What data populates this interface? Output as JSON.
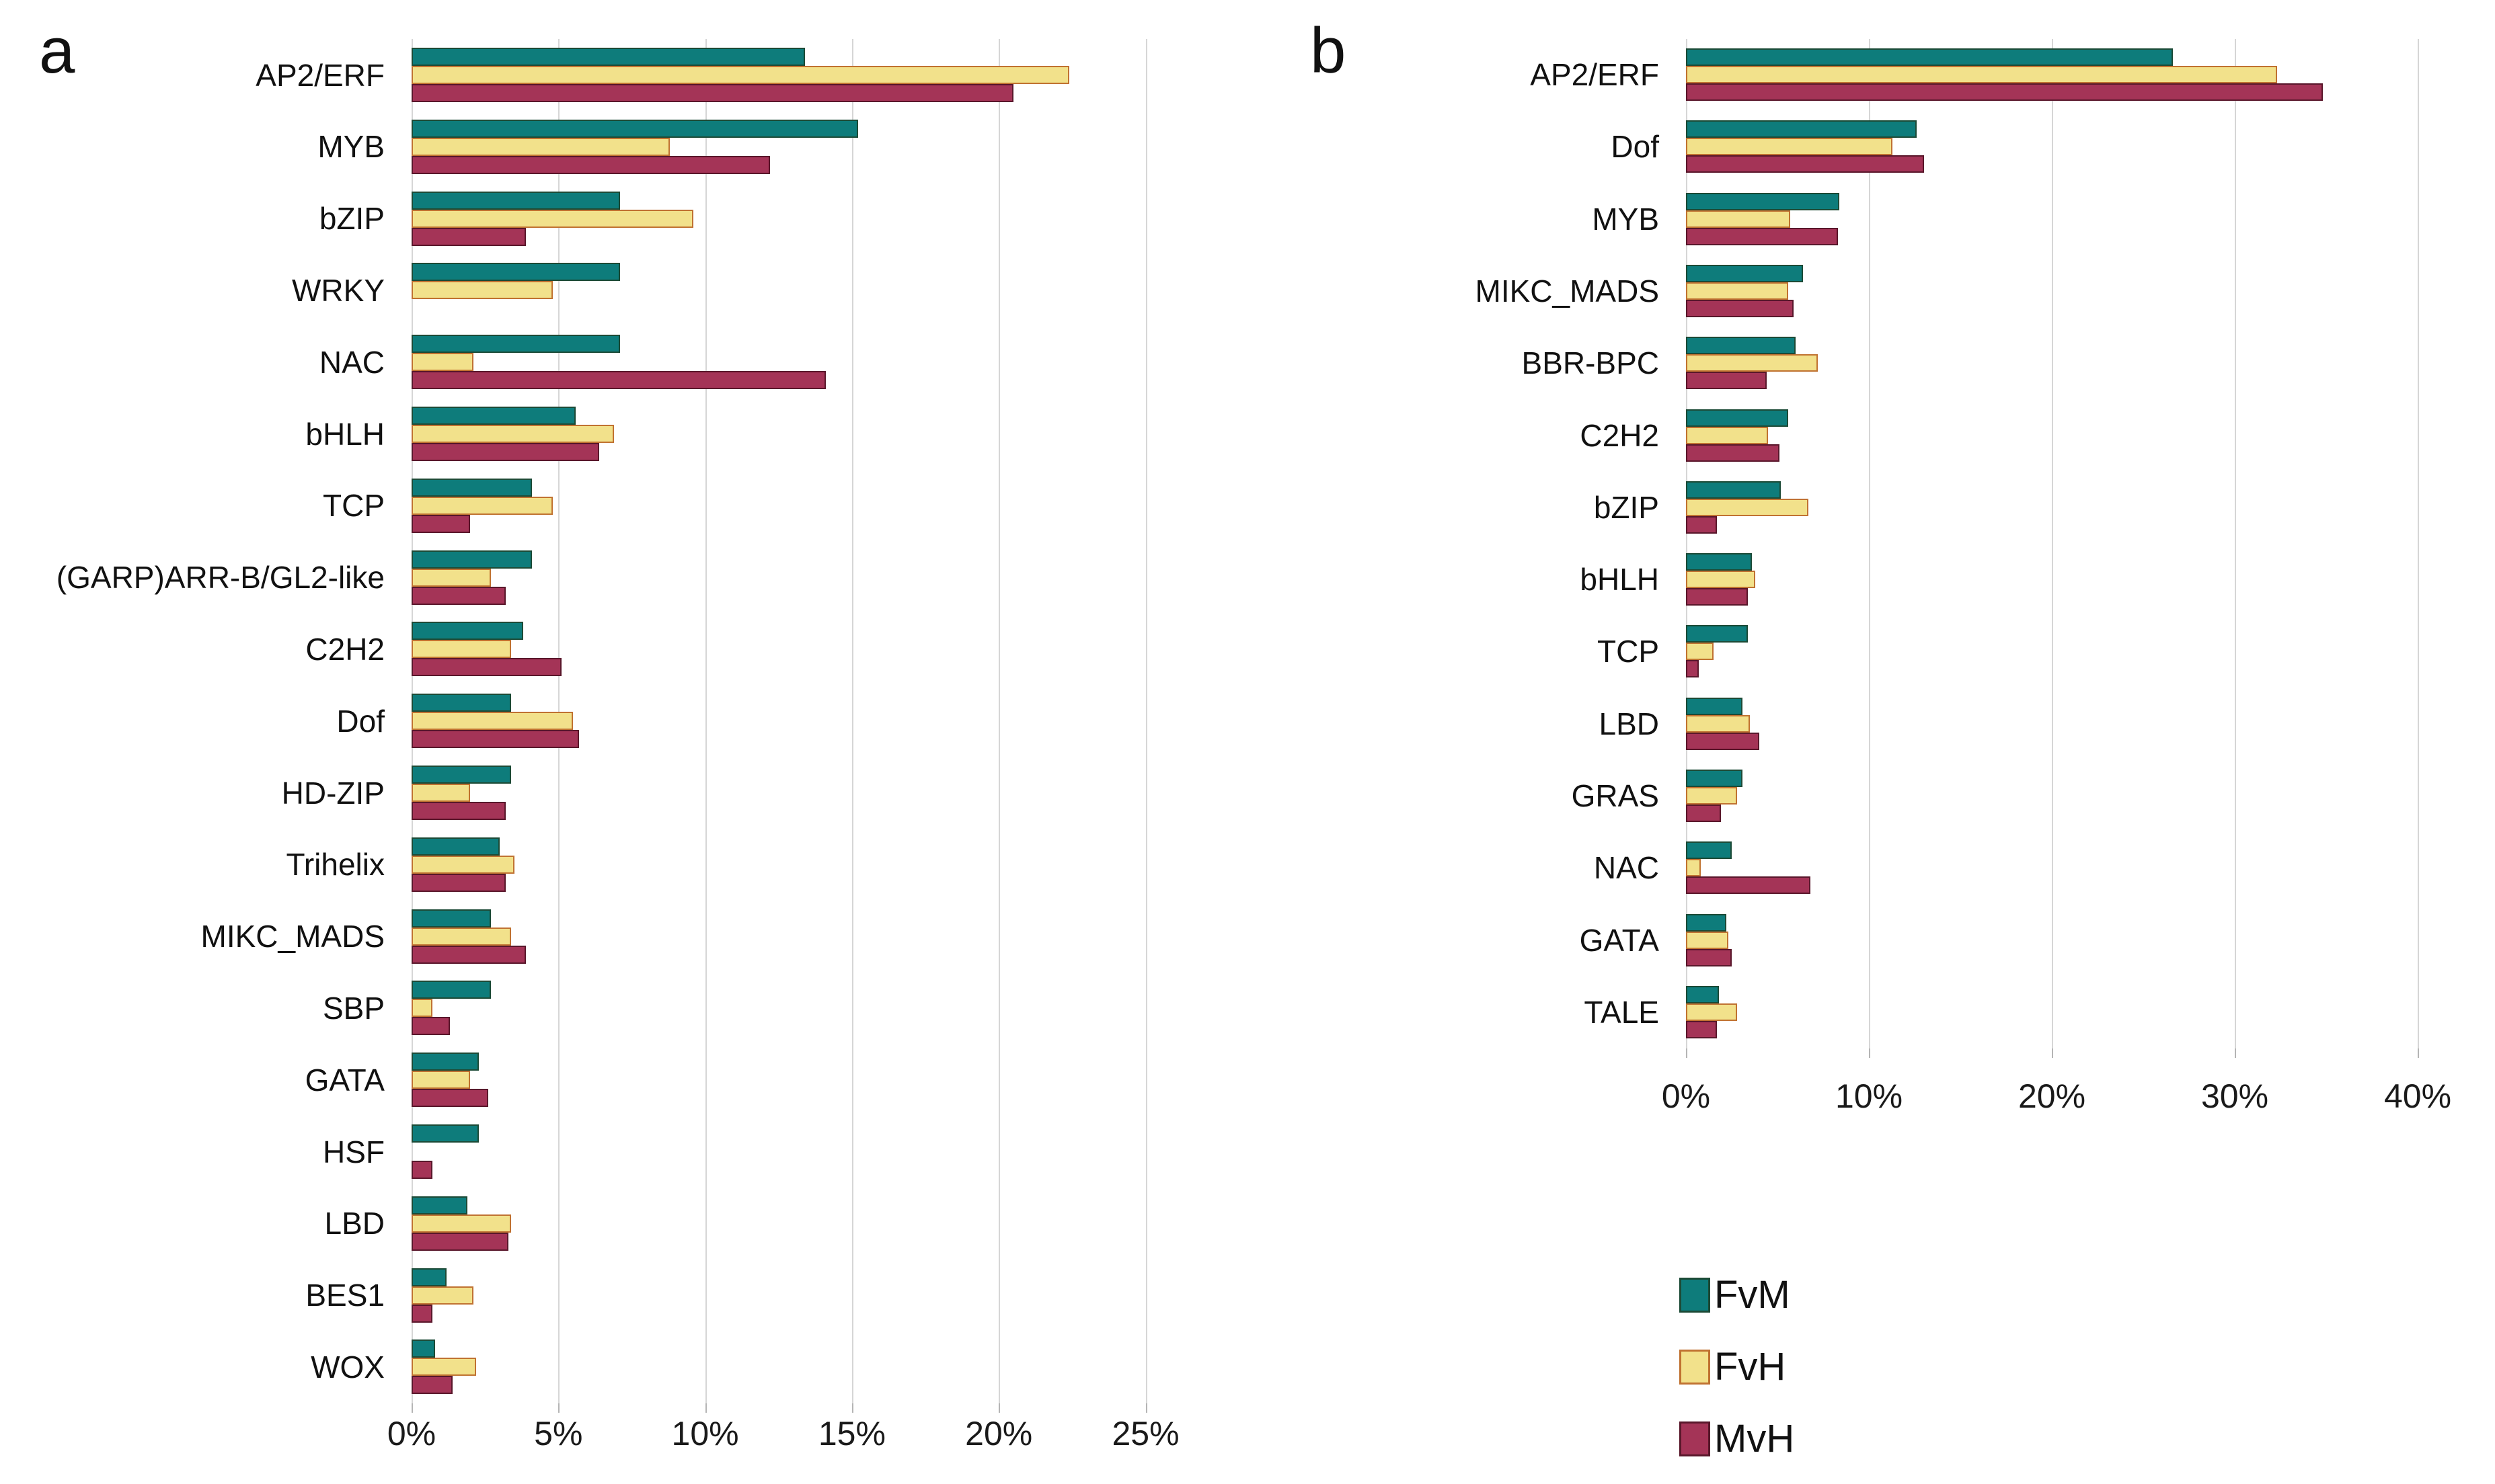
{
  "chart_data": [
    {
      "type": "bar",
      "orientation": "horizontal",
      "panel_label": "a",
      "xlabel": "",
      "ylabel": "",
      "xlim": [
        0,
        25
      ],
      "x_ticks": [
        "0%",
        "5%",
        "10%",
        "15%",
        "20%",
        "25%"
      ],
      "x_tick_values": [
        0,
        5,
        10,
        15,
        20,
        25
      ],
      "grid": "vertical",
      "categories": [
        "AP2/ERF",
        "MYB",
        "bZIP",
        "WRKY",
        "NAC",
        "bHLH",
        "TCP",
        "(GARP)ARR-B/GL2-like",
        "C2H2",
        "Dof",
        "HD-ZIP",
        "Trihelix",
        "MIKC_MADS",
        "SBP",
        "GATA",
        "HSF",
        "LBD",
        "BES1",
        "WOX"
      ],
      "series": [
        {
          "name": "FvM",
          "color": "#0E7C7B",
          "border_color": "#1C4A36",
          "values": [
            13.4,
            15.2,
            7.1,
            7.1,
            7.1,
            5.6,
            4.1,
            4.1,
            3.8,
            3.4,
            3.4,
            3.0,
            2.7,
            2.7,
            2.3,
            2.3,
            1.9,
            1.2,
            0.8
          ]
        },
        {
          "name": "FvH",
          "color": "#F2E18B",
          "border_color": "#C07231",
          "values": [
            22.4,
            8.8,
            9.6,
            4.8,
            2.1,
            6.9,
            4.8,
            2.7,
            3.4,
            5.5,
            2.0,
            3.5,
            3.4,
            0.7,
            2.0,
            null,
            3.4,
            2.1,
            2.2
          ]
        },
        {
          "name": "MvH",
          "color": "#A43457",
          "border_color": "#59172B",
          "values": [
            20.5,
            12.2,
            3.9,
            null,
            14.1,
            6.4,
            2.0,
            3.2,
            5.1,
            5.7,
            3.2,
            3.2,
            3.9,
            1.3,
            2.6,
            0.7,
            3.3,
            0.7,
            1.4
          ]
        }
      ]
    },
    {
      "type": "bar",
      "orientation": "horizontal",
      "panel_label": "b",
      "xlabel": "",
      "ylabel": "",
      "xlim": [
        0,
        40
      ],
      "x_ticks": [
        "0%",
        "10%",
        "20%",
        "30%",
        "40%"
      ],
      "x_tick_values": [
        0,
        10,
        20,
        30,
        40
      ],
      "grid": "vertical",
      "categories": [
        "AP2/ERF",
        "Dof",
        "MYB",
        "MIKC_MADS",
        "BBR-BPC",
        "C2H2",
        "bZIP",
        "bHLH",
        "TCP",
        "LBD",
        "GRAS",
        "NAC",
        "GATA",
        "TALE"
      ],
      "series": [
        {
          "name": "FvM",
          "color": "#0E7C7B",
          "border_color": "#1C4A36",
          "values": [
            26.6,
            12.6,
            8.4,
            6.4,
            6.0,
            5.6,
            5.2,
            3.6,
            3.4,
            3.1,
            3.1,
            2.5,
            2.2,
            1.8
          ]
        },
        {
          "name": "FvH",
          "color": "#F2E18B",
          "border_color": "#C07231",
          "values": [
            32.3,
            11.3,
            5.7,
            5.6,
            7.2,
            4.5,
            6.7,
            3.8,
            1.5,
            3.5,
            2.8,
            0.8,
            2.3,
            2.8
          ]
        },
        {
          "name": "MvH",
          "color": "#A43457",
          "border_color": "#59172B",
          "values": [
            34.8,
            13.0,
            8.3,
            5.9,
            4.4,
            5.1,
            1.7,
            3.4,
            0.7,
            4.0,
            1.9,
            6.8,
            2.5,
            1.7
          ]
        }
      ]
    }
  ],
  "legend": {
    "items": [
      {
        "label": "FvM",
        "color": "#0E7C7B",
        "border_color": "#1C4A36"
      },
      {
        "label": "FvH",
        "color": "#F2E18B",
        "border_color": "#C07231"
      },
      {
        "label": "MvH",
        "color": "#A43457",
        "border_color": "#59172B"
      }
    ]
  }
}
